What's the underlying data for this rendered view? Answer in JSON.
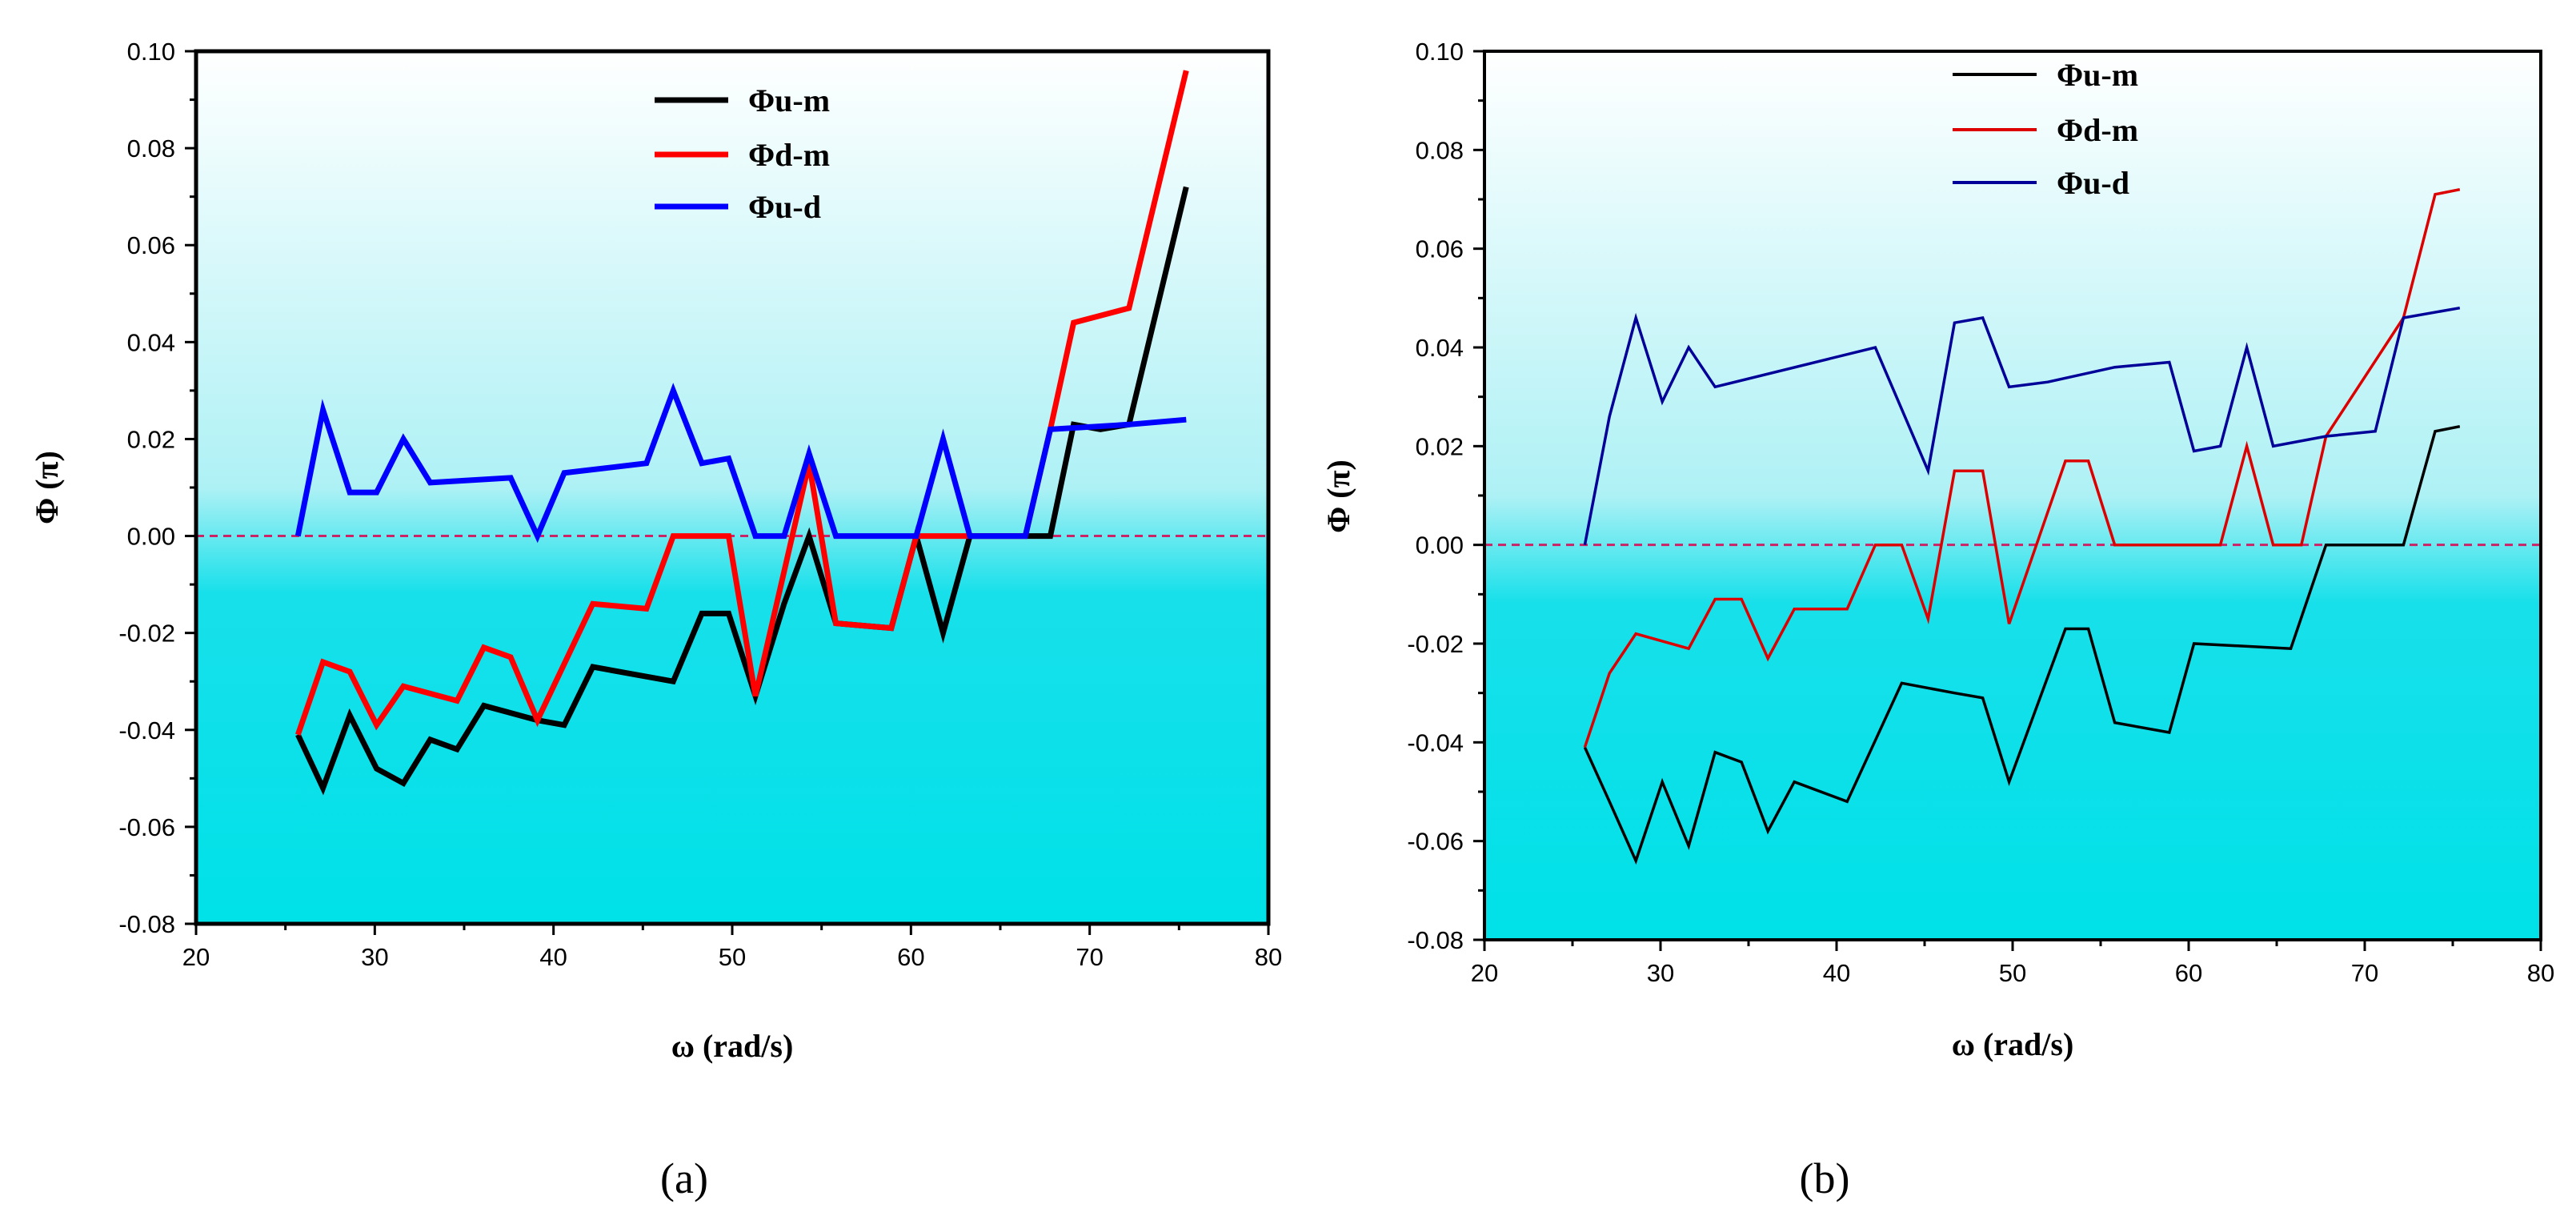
{
  "chart_data": [
    {
      "type": "line",
      "panel_label": "(a)",
      "xlabel": "ω (rad/s)",
      "ylabel": "Φ (π)",
      "xlim": [
        20,
        80
      ],
      "ylim": [
        -0.08,
        0.1
      ],
      "xticks": [
        "20",
        "30",
        "40",
        "50",
        "60",
        "70",
        "80"
      ],
      "yticks": [
        "-0.08",
        "-0.06",
        "-0.04",
        "-0.02",
        "0.00",
        "0.02",
        "0.04",
        "0.06",
        "0.08",
        "0.10"
      ],
      "reference_line": 0.0,
      "legend_position": "top-center",
      "background": "vertical gradient white to cyan",
      "series": [
        {
          "name": "Φu-m",
          "color": "#000000",
          "points": [
            [
              25.7,
              -0.041
            ],
            [
              27.1,
              -0.052
            ],
            [
              28.6,
              -0.037
            ],
            [
              30.1,
              -0.048
            ],
            [
              31.6,
              -0.051
            ],
            [
              33.1,
              -0.042
            ],
            [
              34.6,
              -0.044
            ],
            [
              36.1,
              -0.035
            ],
            [
              39.1,
              -0.038
            ],
            [
              40.6,
              -0.039
            ],
            [
              42.2,
              -0.027
            ],
            [
              45.2,
              -0.029
            ],
            [
              46.7,
              -0.03
            ],
            [
              48.3,
              -0.016
            ],
            [
              49.8,
              -0.016
            ],
            [
              51.3,
              -0.033
            ],
            [
              52.9,
              -0.014
            ],
            [
              54.3,
              0.0
            ],
            [
              55.8,
              -0.018
            ],
            [
              58.9,
              -0.019
            ],
            [
              60.3,
              0.0
            ],
            [
              61.8,
              -0.02
            ],
            [
              63.3,
              0.0
            ],
            [
              66.4,
              0.0
            ],
            [
              67.8,
              0.0
            ],
            [
              69.1,
              0.023
            ],
            [
              70.6,
              0.022
            ],
            [
              72.2,
              0.023
            ],
            [
              75.4,
              0.072
            ]
          ]
        },
        {
          "name": "Φd-m",
          "color": "#ff0000",
          "points": [
            [
              25.7,
              -0.041
            ],
            [
              27.1,
              -0.026
            ],
            [
              28.6,
              -0.028
            ],
            [
              30.1,
              -0.039
            ],
            [
              31.6,
              -0.031
            ],
            [
              34.6,
              -0.034
            ],
            [
              36.1,
              -0.023
            ],
            [
              37.6,
              -0.025
            ],
            [
              39.1,
              -0.038
            ],
            [
              42.2,
              -0.014
            ],
            [
              45.2,
              -0.015
            ],
            [
              46.7,
              0.0
            ],
            [
              49.8,
              0.0
            ],
            [
              51.3,
              -0.033
            ],
            [
              54.3,
              0.015
            ],
            [
              55.8,
              -0.018
            ],
            [
              58.9,
              -0.019
            ],
            [
              60.3,
              0.0
            ],
            [
              63.3,
              0.0
            ],
            [
              66.4,
              0.0
            ],
            [
              67.8,
              0.022
            ],
            [
              69.1,
              0.044
            ],
            [
              72.2,
              0.047
            ],
            [
              75.4,
              0.096
            ]
          ]
        },
        {
          "name": "Φu-d",
          "color": "#0000ff",
          "points": [
            [
              25.7,
              0.0
            ],
            [
              27.1,
              0.026
            ],
            [
              28.6,
              0.009
            ],
            [
              30.1,
              0.009
            ],
            [
              31.6,
              0.02
            ],
            [
              33.1,
              0.011
            ],
            [
              37.6,
              0.012
            ],
            [
              39.1,
              0.0
            ],
            [
              40.6,
              0.013
            ],
            [
              45.2,
              0.015
            ],
            [
              46.7,
              0.03
            ],
            [
              48.3,
              0.015
            ],
            [
              49.8,
              0.016
            ],
            [
              51.3,
              0.0
            ],
            [
              52.9,
              0.0
            ],
            [
              54.3,
              0.017
            ],
            [
              55.8,
              0.0
            ],
            [
              60.3,
              0.0
            ],
            [
              61.8,
              0.02
            ],
            [
              63.3,
              0.0
            ],
            [
              66.4,
              0.0
            ],
            [
              67.8,
              0.022
            ],
            [
              72.2,
              0.023
            ],
            [
              75.4,
              0.024
            ]
          ]
        }
      ]
    },
    {
      "type": "line",
      "panel_label": "(b)",
      "xlabel": "ω (rad/s)",
      "ylabel": "Φ (π)",
      "xlim": [
        20,
        80
      ],
      "ylim": [
        -0.08,
        0.1
      ],
      "xticks": [
        "20",
        "30",
        "40",
        "50",
        "60",
        "70",
        "80"
      ],
      "yticks": [
        "-0.08",
        "-0.06",
        "-0.04",
        "-0.02",
        "0.00",
        "0.02",
        "0.04",
        "0.06",
        "0.08",
        "0.10"
      ],
      "reference_line": 0.0,
      "legend_position": "top-center",
      "background": "vertical gradient white to cyan",
      "series": [
        {
          "name": "Φu-m",
          "color": "#000000",
          "points": [
            [
              25.7,
              -0.041
            ],
            [
              27.1,
              -0.052
            ],
            [
              28.6,
              -0.064
            ],
            [
              30.1,
              -0.048
            ],
            [
              31.6,
              -0.061
            ],
            [
              33.1,
              -0.042
            ],
            [
              34.6,
              -0.044
            ],
            [
              36.1,
              -0.058
            ],
            [
              37.6,
              -0.048
            ],
            [
              40.6,
              -0.052
            ],
            [
              43.7,
              -0.028
            ],
            [
              46.7,
              -0.03
            ],
            [
              48.3,
              -0.031
            ],
            [
              49.8,
              -0.048
            ],
            [
              53.0,
              -0.017
            ],
            [
              54.3,
              -0.017
            ],
            [
              55.8,
              -0.036
            ],
            [
              58.9,
              -0.038
            ],
            [
              60.3,
              -0.02
            ],
            [
              65.8,
              -0.021
            ],
            [
              67.8,
              0.0
            ],
            [
              72.2,
              0.0
            ],
            [
              74.0,
              0.023
            ],
            [
              75.4,
              0.024
            ]
          ]
        },
        {
          "name": "Φd-m",
          "color": "#dd0000",
          "points": [
            [
              25.7,
              -0.041
            ],
            [
              27.1,
              -0.026
            ],
            [
              28.6,
              -0.018
            ],
            [
              31.6,
              -0.021
            ],
            [
              33.1,
              -0.011
            ],
            [
              34.6,
              -0.011
            ],
            [
              36.1,
              -0.023
            ],
            [
              37.6,
              -0.013
            ],
            [
              40.6,
              -0.013
            ],
            [
              42.2,
              0.0
            ],
            [
              43.7,
              0.0
            ],
            [
              45.2,
              -0.015
            ],
            [
              46.7,
              0.015
            ],
            [
              48.3,
              0.015
            ],
            [
              49.8,
              -0.016
            ],
            [
              53.0,
              0.017
            ],
            [
              54.3,
              0.017
            ],
            [
              55.8,
              0.0
            ],
            [
              61.8,
              0.0
            ],
            [
              63.3,
              0.02
            ],
            [
              64.8,
              0.0
            ],
            [
              66.4,
              0.0
            ],
            [
              67.8,
              0.022
            ],
            [
              72.2,
              0.046
            ],
            [
              74.0,
              0.071
            ],
            [
              75.4,
              0.072
            ]
          ]
        },
        {
          "name": "Φu-d",
          "color": "#000099",
          "points": [
            [
              25.7,
              0.0
            ],
            [
              27.1,
              0.026
            ],
            [
              28.6,
              0.046
            ],
            [
              30.1,
              0.029
            ],
            [
              31.6,
              0.04
            ],
            [
              33.1,
              0.032
            ],
            [
              42.2,
              0.04
            ],
            [
              45.2,
              0.015
            ],
            [
              46.7,
              0.045
            ],
            [
              48.3,
              0.046
            ],
            [
              49.8,
              0.032
            ],
            [
              52.0,
              0.033
            ],
            [
              55.8,
              0.036
            ],
            [
              58.9,
              0.037
            ],
            [
              60.3,
              0.019
            ],
            [
              61.8,
              0.02
            ],
            [
              63.3,
              0.04
            ],
            [
              64.8,
              0.02
            ],
            [
              67.8,
              0.022
            ],
            [
              70.6,
              0.023
            ],
            [
              72.2,
              0.046
            ],
            [
              75.4,
              0.048
            ]
          ]
        }
      ]
    }
  ]
}
